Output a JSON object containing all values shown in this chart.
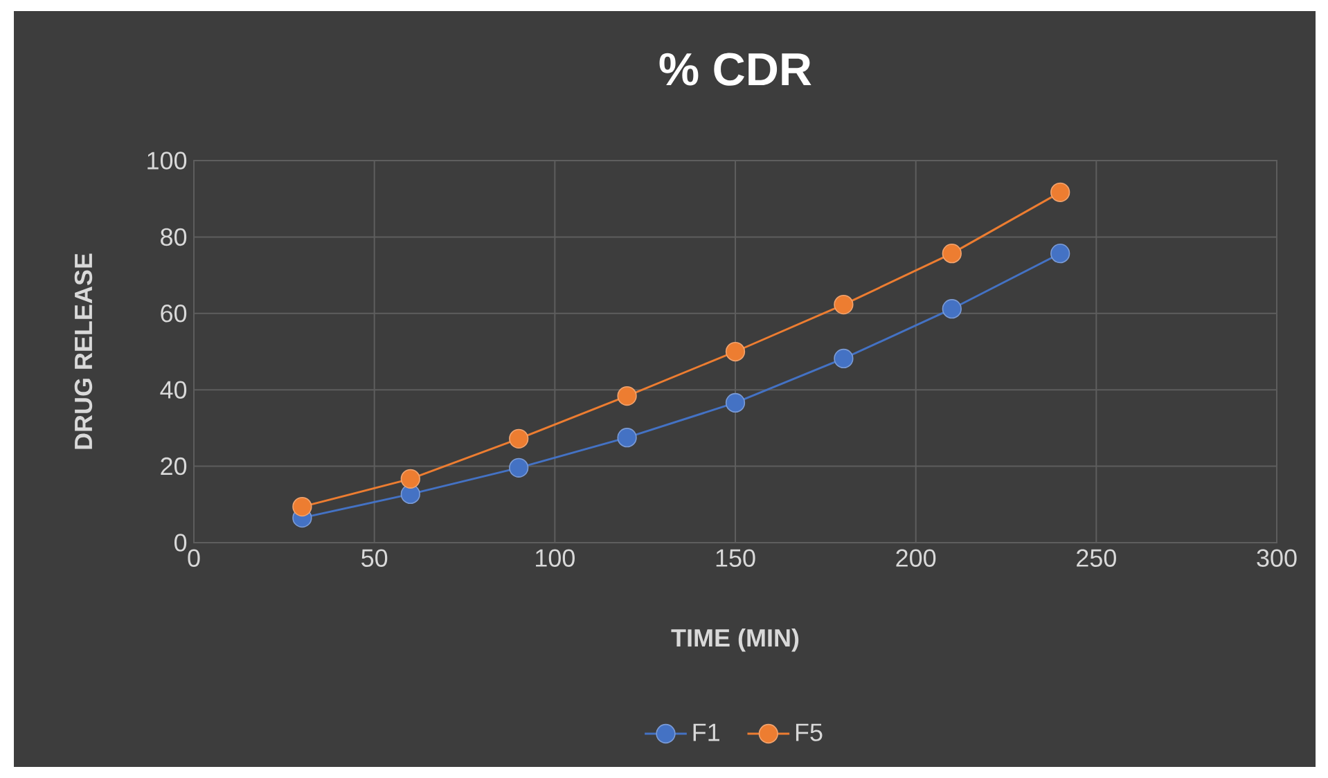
{
  "chart_data": {
    "type": "line",
    "title": "% CDR",
    "xlabel": "TIME (MIN)",
    "ylabel": "DRUG RELEASE",
    "x": [
      30,
      60,
      90,
      120,
      150,
      180,
      210,
      240
    ],
    "series": [
      {
        "name": "F1",
        "color": "#4472c4",
        "values": [
          6.5,
          12.7,
          19.6,
          27.5,
          36.6,
          48.2,
          61.2,
          75.7
        ]
      },
      {
        "name": "F5",
        "color": "#ed7d31",
        "values": [
          9.4,
          16.7,
          27.2,
          38.4,
          50,
          62.3,
          75.7,
          91.7
        ]
      }
    ],
    "xlim": [
      0,
      300
    ],
    "ylim": [
      0,
      100
    ],
    "xticks": [
      0,
      50,
      100,
      150,
      200,
      250,
      300
    ],
    "yticks": [
      0,
      20,
      40,
      60,
      80,
      100
    ],
    "grid": true,
    "legend": "bottom",
    "marker": "circle",
    "line_style": "solid"
  }
}
